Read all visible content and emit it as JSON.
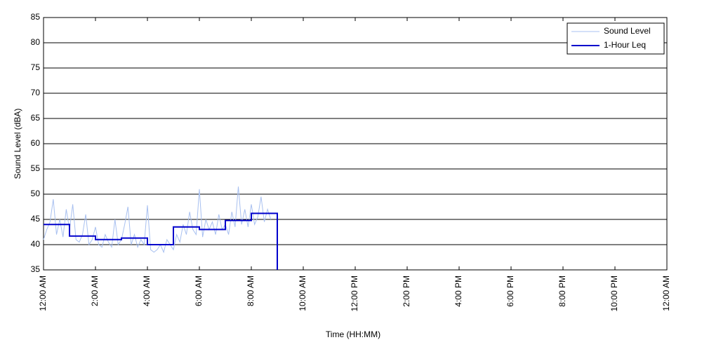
{
  "chart_data": {
    "type": "line",
    "xlabel": "Time (HH:MM)",
    "ylabel": "Sound Level (dBA)",
    "xlim": [
      0,
      24
    ],
    "ylim": [
      35,
      85
    ],
    "xticks": [
      {
        "value": 0,
        "label": "12:00 AM"
      },
      {
        "value": 2,
        "label": "2:00 AM"
      },
      {
        "value": 4,
        "label": "4:00 AM"
      },
      {
        "value": 6,
        "label": "6:00 AM"
      },
      {
        "value": 8,
        "label": "8:00 AM"
      },
      {
        "value": 10,
        "label": "10:00 AM"
      },
      {
        "value": 12,
        "label": "12:00 PM"
      },
      {
        "value": 14,
        "label": "2:00 PM"
      },
      {
        "value": 16,
        "label": "4:00 PM"
      },
      {
        "value": 18,
        "label": "6:00 PM"
      },
      {
        "value": 20,
        "label": "8:00 PM"
      },
      {
        "value": 22,
        "label": "10:00 PM"
      },
      {
        "value": 24,
        "label": "12:00 AM"
      }
    ],
    "yticks": [
      35,
      40,
      45,
      50,
      55,
      60,
      65,
      70,
      75,
      80,
      85
    ],
    "grid": true,
    "legend": "top-right",
    "series": [
      {
        "name": "Sound Level",
        "color": "#a8c0f0",
        "width": 1,
        "x": [
          0,
          0.125,
          0.25,
          0.375,
          0.5,
          0.625,
          0.75,
          0.875,
          1,
          1.125,
          1.25,
          1.375,
          1.5,
          1.625,
          1.75,
          1.875,
          2,
          2.125,
          2.25,
          2.375,
          2.5,
          2.625,
          2.75,
          2.875,
          3,
          3.125,
          3.25,
          3.375,
          3.5,
          3.625,
          3.75,
          3.875,
          4,
          4.125,
          4.25,
          4.375,
          4.5,
          4.625,
          4.75,
          4.875,
          5,
          5.125,
          5.25,
          5.375,
          5.5,
          5.625,
          5.75,
          5.875,
          6,
          6.125,
          6.25,
          6.375,
          6.5,
          6.625,
          6.75,
          6.875,
          7,
          7.125,
          7.25,
          7.375,
          7.5,
          7.625,
          7.75,
          7.875,
          8,
          8.125,
          8.25,
          8.375,
          8.5,
          8.625,
          8.75
        ],
        "values": [
          41,
          43,
          44.5,
          49,
          42,
          45,
          41.5,
          47,
          43,
          48,
          41,
          40.5,
          42,
          46,
          40,
          41,
          43.5,
          40,
          39.5,
          42,
          40.5,
          39.5,
          45,
          40,
          41,
          44,
          47.5,
          40,
          42,
          39.5,
          41,
          40,
          47.8,
          39,
          38.5,
          39,
          40,
          38.5,
          41,
          40,
          39,
          42,
          40.5,
          44,
          42,
          46.5,
          43,
          42,
          51,
          41.5,
          45,
          43,
          44.5,
          42,
          46,
          43,
          44,
          42,
          46.5,
          43.5,
          51.5,
          44,
          47,
          43.5,
          48,
          44,
          45.5,
          49.5,
          44.5,
          47,
          45
        ]
      },
      {
        "name": "1-Hour Leq",
        "color": "#0000cc",
        "width": 2,
        "x": [
          0,
          1,
          1,
          2,
          2,
          3,
          3,
          4,
          4,
          5,
          5,
          6,
          6,
          7,
          7,
          8,
          8,
          9,
          9
        ],
        "values": [
          44,
          44,
          41.7,
          41.7,
          41,
          41,
          41.3,
          41.3,
          40,
          40,
          43.5,
          43.5,
          43,
          43,
          44.8,
          44.8,
          46.2,
          46.2,
          35
        ]
      }
    ]
  }
}
